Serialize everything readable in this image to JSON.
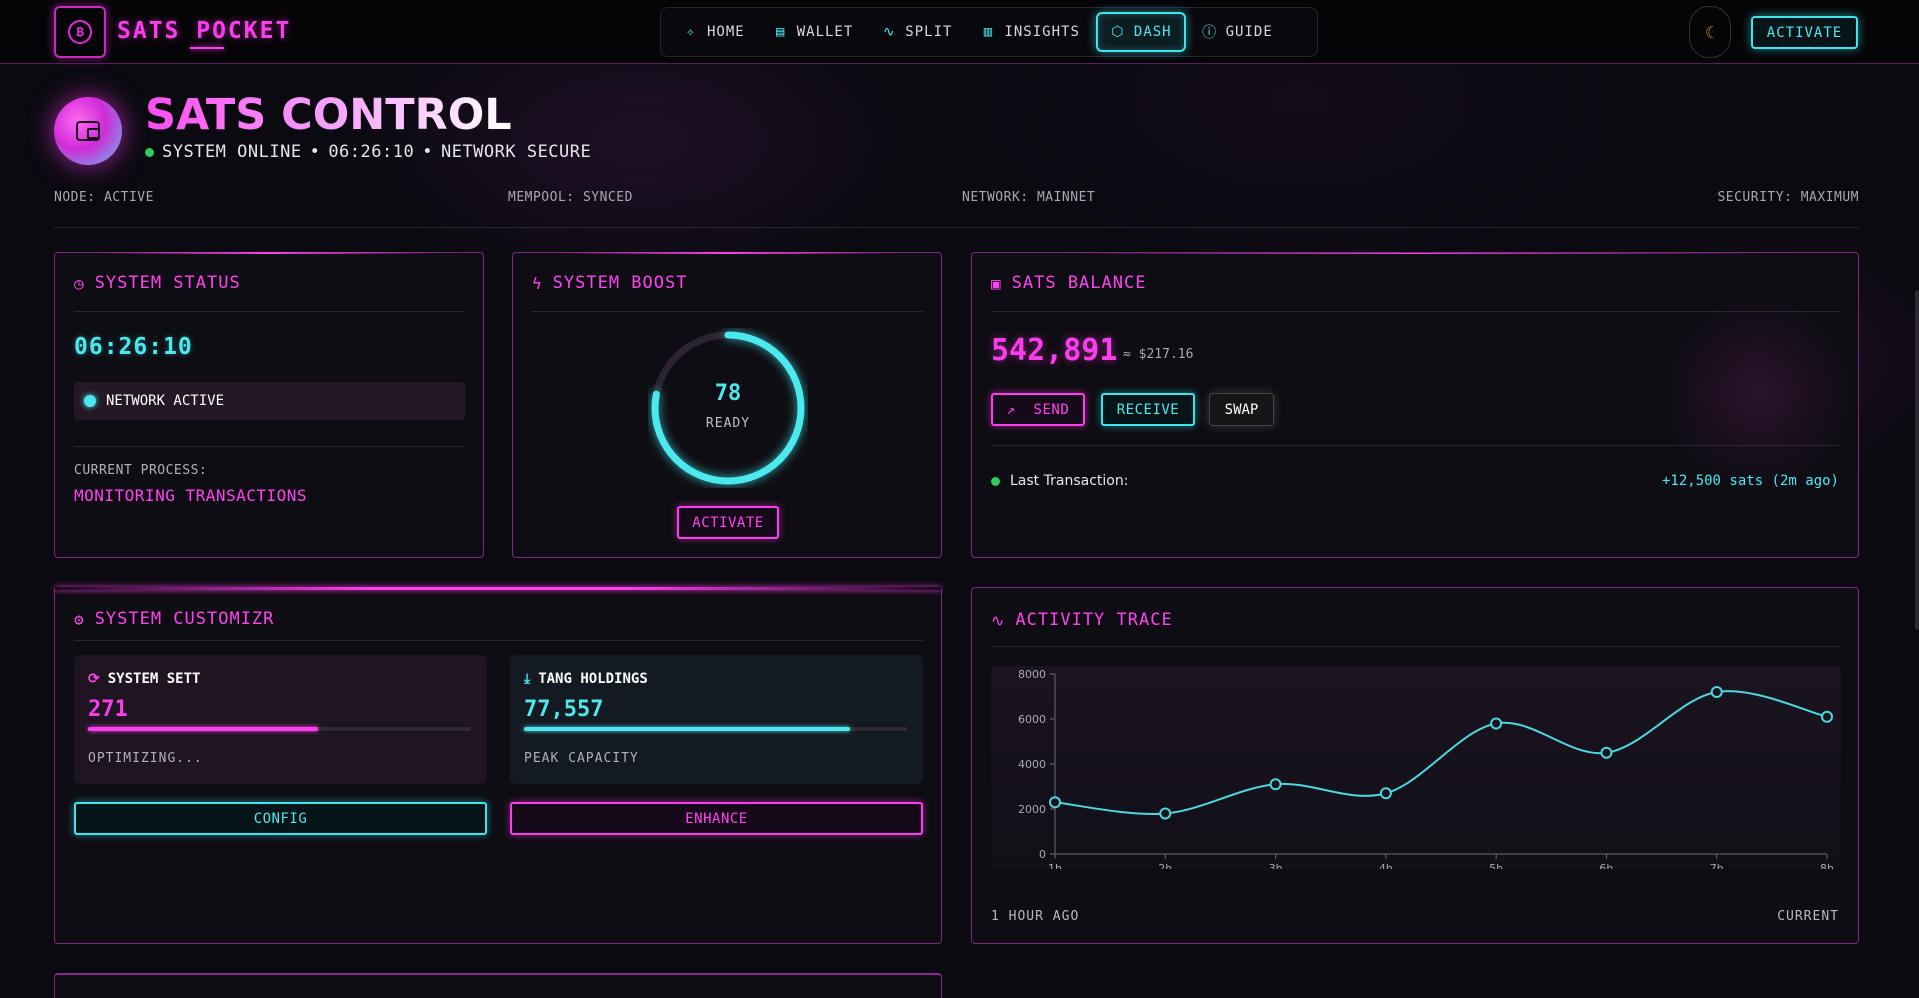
{
  "app": {
    "brand": "SATS POCKET",
    "activate_label": "ACTIVATE"
  },
  "nav": {
    "items": [
      {
        "label": "HOME",
        "icon": "sparkle-icon"
      },
      {
        "label": "WALLET",
        "icon": "wallet-icon"
      },
      {
        "label": "SPLIT",
        "icon": "pulse-icon"
      },
      {
        "label": "INSIGHTS",
        "icon": "bar-chart-icon"
      },
      {
        "label": "DASH",
        "icon": "hexagon-icon"
      },
      {
        "label": "GUIDE",
        "icon": "help-circle-icon"
      }
    ],
    "active": "DASH"
  },
  "header": {
    "title": "SATS CONTROL",
    "status_online": "SYSTEM ONLINE",
    "time": "06:26:10",
    "status_network": "NETWORK SECURE",
    "separator": "•"
  },
  "info_row": {
    "node": "NODE: ACTIVE",
    "mempool": "MEMPOOL: SYNCED",
    "network": "NETWORK: MAINNET",
    "security": "SECURITY: MAXIMUM"
  },
  "system_status": {
    "title": "SYSTEM STATUS",
    "clock": "06:26:10",
    "network_label": "NETWORK ACTIVE",
    "process_label": "CURRENT PROCESS:",
    "process_value": "MONITORING TRANSACTIONS"
  },
  "system_boost": {
    "title": "SYSTEM BOOST",
    "value": "78",
    "percent": 78,
    "status": "READY",
    "button": "ACTIVATE"
  },
  "balance": {
    "title": "SATS BALANCE",
    "amount": "542,891",
    "fiat": "≈ $217.16",
    "send": "SEND",
    "receive": "RECEIVE",
    "swap": "SWAP",
    "last_tx_label": "Last Transaction:",
    "last_tx_value": "+12,500 sats (2m ago)"
  },
  "customizer": {
    "title": "SYSTEM CUSTOMIZR",
    "card1": {
      "title": "SYSTEM SETT",
      "value": "271",
      "progress": 0.6,
      "note": "OPTIMIZING..."
    },
    "card2": {
      "title": "TANG HOLDINGS",
      "value": "77,557",
      "progress": 0.85,
      "note": "PEAK CAPACITY"
    },
    "config": "CONFIG",
    "enhance": "ENHANCE"
  },
  "activity": {
    "title": "ACTIVITY TRACE",
    "left_foot": "1 HOUR AGO",
    "right_foot": "CURRENT"
  },
  "chart_data": {
    "type": "line",
    "title": "ACTIVITY TRACE",
    "x": [
      "1h",
      "2h",
      "3h",
      "4h",
      "5h",
      "6h",
      "7h",
      "8h"
    ],
    "series": [
      {
        "name": "activity",
        "values": [
          2300,
          1800,
          3100,
          2700,
          5800,
          4500,
          7200,
          6100
        ]
      }
    ],
    "ylim": [
      0,
      8000
    ],
    "yticks": [
      0,
      2000,
      4000,
      6000,
      8000
    ],
    "color": "#4bd8e0"
  },
  "colors": {
    "magenta": "#ff3cee",
    "cyan": "#4be8ee",
    "green": "#2ecc5a",
    "background": "#0b0a10"
  }
}
